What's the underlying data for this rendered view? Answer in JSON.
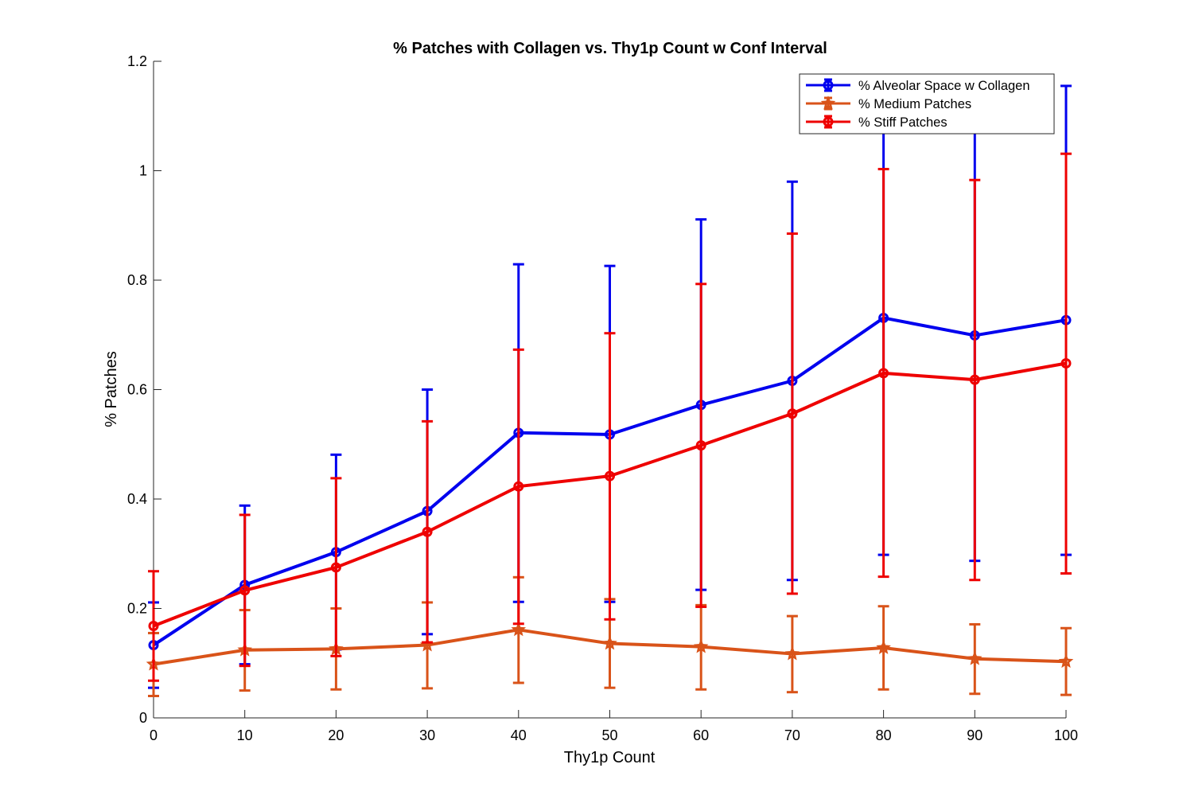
{
  "chart_data": {
    "type": "line",
    "title": "% Patches with Collagen vs. Thy1p Count w Conf Interval",
    "xlabel": "Thy1p Count",
    "ylabel": "% Patches",
    "xlim": [
      0,
      100
    ],
    "ylim": [
      0,
      1.2
    ],
    "xticks": [
      "0",
      "10",
      "20",
      "30",
      "40",
      "50",
      "60",
      "70",
      "80",
      "90",
      "100"
    ],
    "yticks": [
      "0",
      "0.2",
      "0.4",
      "0.6",
      "0.8",
      "1",
      "1.2"
    ],
    "grid": false,
    "legend_position": "top-right",
    "x": [
      0,
      10,
      20,
      30,
      40,
      50,
      60,
      70,
      80,
      90,
      100
    ],
    "series": [
      {
        "name": "% Alveolar Space w Collagen",
        "color": "#0000ee",
        "marker": "circle",
        "values": [
          0.133,
          0.243,
          0.303,
          0.378,
          0.521,
          0.518,
          0.572,
          0.616,
          0.731,
          0.699,
          0.727
        ],
        "lower": [
          0.055,
          0.098,
          0.125,
          0.153,
          0.212,
          0.212,
          0.234,
          0.252,
          0.298,
          0.287,
          0.298
        ],
        "upper": [
          0.211,
          0.388,
          0.481,
          0.6,
          0.829,
          0.826,
          0.911,
          0.98,
          1.163,
          1.11,
          1.155
        ]
      },
      {
        "name": "% Medium Patches",
        "color": "#d95319",
        "marker": "star",
        "values": [
          0.098,
          0.124,
          0.126,
          0.133,
          0.161,
          0.136,
          0.13,
          0.117,
          0.128,
          0.108,
          0.103
        ],
        "lower": [
          0.04,
          0.05,
          0.052,
          0.054,
          0.064,
          0.055,
          0.052,
          0.047,
          0.052,
          0.044,
          0.042
        ],
        "upper": [
          0.155,
          0.197,
          0.2,
          0.211,
          0.257,
          0.217,
          0.206,
          0.186,
          0.204,
          0.171,
          0.164
        ]
      },
      {
        "name": "% Stiff Patches",
        "color": "#ee0000",
        "marker": "circle",
        "values": [
          0.168,
          0.233,
          0.275,
          0.34,
          0.423,
          0.442,
          0.498,
          0.556,
          0.63,
          0.618,
          0.648
        ],
        "lower": [
          0.068,
          0.095,
          0.113,
          0.138,
          0.172,
          0.18,
          0.203,
          0.227,
          0.258,
          0.252,
          0.264
        ],
        "upper": [
          0.268,
          0.371,
          0.438,
          0.542,
          0.673,
          0.703,
          0.793,
          0.885,
          1.003,
          0.983,
          1.031
        ]
      }
    ]
  }
}
